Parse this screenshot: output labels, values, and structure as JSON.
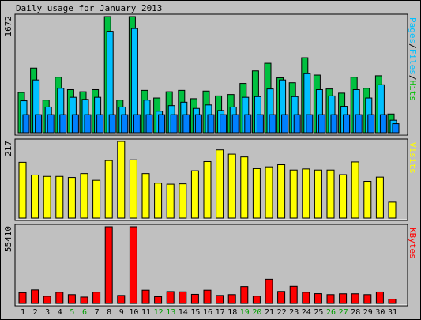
{
  "chart_data": {
    "type": "bar",
    "title": "Daily usage for January 2013",
    "categories": [
      "1",
      "2",
      "3",
      "4",
      "5",
      "6",
      "7",
      "8",
      "9",
      "10",
      "11",
      "12",
      "13",
      "14",
      "15",
      "16",
      "17",
      "18",
      "19",
      "20",
      "21",
      "22",
      "23",
      "24",
      "25",
      "26",
      "27",
      "28",
      "29",
      "30",
      "31"
    ],
    "weekend_days": [
      "5",
      "6",
      "12",
      "13",
      "19",
      "20",
      "26",
      "27"
    ],
    "panels": [
      {
        "name": "pages-files-hits",
        "ymax_label": "1672",
        "ylim": [
          0,
          1672
        ],
        "series_label": [
          "Pages",
          "/",
          "Files",
          "/",
          "Hits"
        ],
        "series_label_colors": [
          "#00c0ff",
          "#000000",
          "#00c0ff",
          "#000000",
          "#00c000"
        ],
        "series": [
          {
            "name": "Hits",
            "color": "#00c040",
            "values": [
              580,
              930,
              470,
              800,
              620,
              590,
              620,
              1672,
              470,
              1672,
              610,
              500,
              590,
              610,
              490,
              600,
              530,
              550,
              710,
              890,
              1000,
              790,
              720,
              1080,
              830,
              630,
              570,
              800,
              640,
              820,
              270
            ]
          },
          {
            "name": "Files",
            "color": "#00c0ff",
            "values": [
              460,
              760,
              370,
              640,
              510,
              480,
              510,
              1460,
              370,
              1500,
              470,
              310,
              390,
              440,
              350,
              400,
              320,
              370,
              510,
              520,
              630,
              760,
              520,
              850,
              620,
              530,
              380,
              620,
              500,
              690,
              180
            ]
          },
          {
            "name": "Pages",
            "color": "#0080ff",
            "values": [
              260,
              260,
              260,
              260,
              260,
              260,
              260,
              260,
              260,
              260,
              260,
              260,
              260,
              260,
              260,
              260,
              260,
              260,
              260,
              260,
              260,
              260,
              260,
              260,
              260,
              260,
              260,
              260,
              260,
              260,
              130
            ]
          }
        ]
      },
      {
        "name": "visits",
        "ymax_label": "217",
        "ylim": [
          0,
          217
        ],
        "series_label": [
          "Visits"
        ],
        "series_label_colors": [
          "#ffff00"
        ],
        "series": [
          {
            "name": "Visits",
            "color": "#ffff00",
            "values": [
              158,
              122,
              118,
              118,
              115,
              126,
              107,
              163,
              217,
              165,
              126,
              99,
              96,
              97,
              134,
              160,
              193,
              181,
              173,
              140,
              145,
              151,
              136,
              139,
              136,
              136,
              123,
              159,
              104,
              116,
              45
            ]
          }
        ]
      },
      {
        "name": "kbytes",
        "ymax_label": "55410",
        "ylim": [
          0,
          55410
        ],
        "series_label": [
          "KBytes"
        ],
        "series_label_colors": [
          "#ff0000"
        ],
        "series": [
          {
            "name": "KBytes",
            "color": "#ff0000",
            "values": [
              7800,
              9800,
              5200,
              8100,
              6400,
              4600,
              8200,
              55410,
              5800,
              55410,
              9600,
              4900,
              8600,
              8400,
              6600,
              9600,
              5800,
              6400,
              12200,
              5300,
              17500,
              8700,
              12400,
              8100,
              7100,
              6400,
              7000,
              7000,
              6400,
              8300,
              3100
            ]
          }
        ]
      }
    ]
  }
}
